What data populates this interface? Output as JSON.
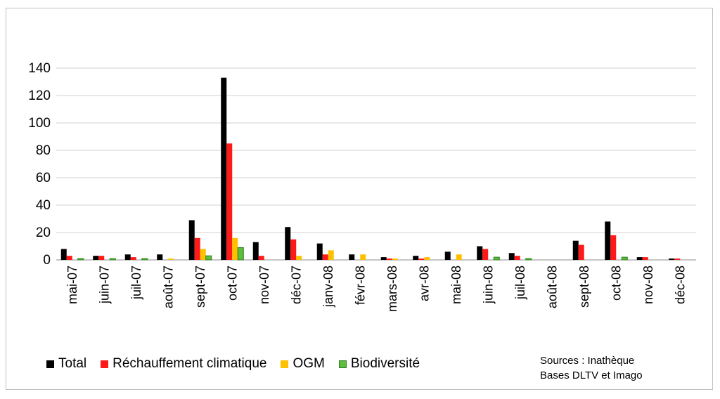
{
  "chart_data": {
    "type": "bar",
    "title": "",
    "xlabel": "",
    "ylabel": "",
    "ylim": [
      0,
      140
    ],
    "yticks": [
      0,
      20,
      40,
      60,
      80,
      100,
      120,
      140
    ],
    "grid": true,
    "legend_position": "bottom",
    "categories": [
      "mai-07",
      "juin-07",
      "juil-07",
      "août-07",
      "sept-07",
      "oct-07",
      "nov-07",
      "déc-07",
      "janv-08",
      "févr-08",
      "mars-08",
      "avr-08",
      "mai-08",
      "juin-08",
      "juil-08",
      "août-08",
      "sept-08",
      "oct-08",
      "nov-08",
      "déc-08"
    ],
    "series": [
      {
        "name": "Total",
        "color": "#000000",
        "values": [
          8,
          3,
          4,
          4,
          29,
          133,
          13,
          24,
          12,
          4,
          2,
          3,
          6,
          10,
          5,
          0,
          14,
          28,
          2,
          1
        ]
      },
      {
        "name": "Réchauffement climatique",
        "color": "#ff1a1a",
        "values": [
          3,
          3,
          2,
          0,
          16,
          85,
          3,
          15,
          4,
          0,
          1,
          1,
          0,
          8,
          3,
          0,
          11,
          18,
          2,
          1
        ]
      },
      {
        "name": "OGM",
        "color": "#ffc000",
        "values": [
          0,
          0,
          0,
          1,
          8,
          16,
          0,
          3,
          7,
          4,
          1,
          2,
          4,
          0,
          0,
          0,
          0,
          0,
          0,
          0
        ]
      },
      {
        "name": "Biodiversité",
        "color": "#5cbf3c",
        "stroke": "#2e7d1f",
        "values": [
          1,
          1,
          1,
          0,
          3,
          9,
          0,
          0,
          0,
          0,
          0,
          0,
          0,
          2,
          1,
          0,
          0,
          2,
          0,
          0
        ]
      }
    ]
  },
  "legend": {
    "items": [
      "Total",
      "Réchauffement climatique",
      "OGM",
      "Biodiversité"
    ]
  },
  "sources": {
    "line1": "Sources : Inathèque",
    "line2": "Bases DLTV et  Imago"
  }
}
